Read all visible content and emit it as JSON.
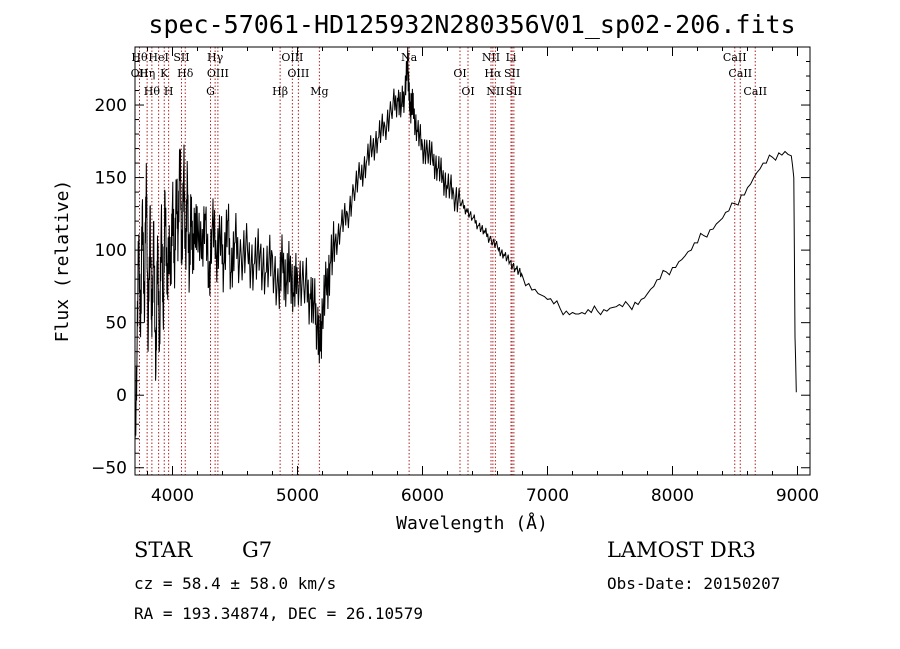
{
  "chart_data": {
    "type": "line",
    "title": "spec-57061-HD125932N280356V01_sp02-206.fits",
    "xlabel": "Wavelength (Å)",
    "ylabel": "Flux (relative)",
    "xlim": [
      3700,
      9100
    ],
    "ylim": [
      -55,
      240
    ],
    "x_ticks": [
      4000,
      5000,
      6000,
      7000,
      8000,
      9000
    ],
    "y_ticks": [
      -50,
      0,
      50,
      100,
      150,
      200
    ],
    "line_color": "#000000",
    "marker_color": "#b22222",
    "series": [
      {
        "name": "flux",
        "x": [
          3700,
          3715,
          3730,
          3745,
          3760,
          3775,
          3790,
          3805,
          3820,
          3835,
          3850,
          3865,
          3880,
          3895,
          3910,
          3925,
          3940,
          3955,
          3970,
          3985,
          4000,
          4015,
          4030,
          4045,
          4060,
          4075,
          4090,
          4105,
          4120,
          4135,
          4150,
          4165,
          4180,
          4200,
          4230,
          4260,
          4290,
          4320,
          4350,
          4380,
          4410,
          4440,
          4470,
          4500,
          4550,
          4600,
          4650,
          4700,
          4750,
          4800,
          4850,
          4880,
          4910,
          4940,
          4970,
          5000,
          5050,
          5100,
          5130,
          5160,
          5180,
          5200,
          5230,
          5260,
          5300,
          5350,
          5400,
          5450,
          5500,
          5550,
          5600,
          5650,
          5700,
          5750,
          5800,
          5830,
          5860,
          5880,
          5890,
          5900,
          5915,
          5930,
          5960,
          6000,
          6040,
          6080,
          6120,
          6160,
          6200,
          6250,
          6300,
          6350,
          6400,
          6450,
          6500,
          6550,
          6600,
          6650,
          6700,
          6750,
          6800,
          6850,
          6900,
          6950,
          7000,
          7050,
          7100,
          7150,
          7200,
          7250,
          7300,
          7350,
          7400,
          7450,
          7500,
          7550,
          7600,
          7650,
          7700,
          7750,
          7800,
          7850,
          7900,
          7950,
          8000,
          8050,
          8100,
          8150,
          8200,
          8250,
          8300,
          8350,
          8400,
          8450,
          8500,
          8550,
          8600,
          8650,
          8700,
          8750,
          8800,
          8850,
          8900,
          8950,
          8970,
          8980,
          8990
        ],
        "y": [
          -30,
          20,
          110,
          40,
          135,
          50,
          160,
          30,
          130,
          40,
          120,
          10,
          110,
          30,
          125,
          55,
          140,
          70,
          105,
          80,
          135,
          85,
          140,
          110,
          170,
          90,
          160,
          95,
          150,
          80,
          135,
          90,
          125,
          115,
          95,
          125,
          75,
          120,
          95,
          110,
          90,
          120,
          85,
          105,
          95,
          100,
          90,
          98,
          85,
          96,
          70,
          92,
          75,
          88,
          68,
          82,
          75,
          70,
          62,
          50,
          30,
          60,
          75,
          90,
          105,
          118,
          125,
          140,
          150,
          160,
          170,
          178,
          185,
          195,
          205,
          198,
          210,
          230,
          215,
          195,
          205,
          195,
          182,
          172,
          168,
          162,
          156,
          150,
          143,
          138,
          133,
          128,
          122,
          117,
          112,
          107,
          102,
          97,
          92,
          87,
          82,
          77,
          73,
          69,
          66,
          63,
          60,
          58,
          57,
          56,
          56,
          57,
          58,
          59,
          60,
          61,
          61,
          62,
          64,
          66,
          70,
          75,
          80,
          85,
          88,
          92,
          96,
          100,
          105,
          110,
          114,
          118,
          122,
          127,
          132,
          138,
          143,
          150,
          156,
          160,
          164,
          167,
          168,
          165,
          150,
          40,
          2
        ]
      }
    ],
    "lines": [
      {
        "wl": 3736,
        "labels": [
          "Hθ",
          "OII"
        ]
      },
      {
        "wl": 3797,
        "labels": [
          "Hη"
        ]
      },
      {
        "wl": 3835,
        "labels": [
          "Hθ"
        ]
      },
      {
        "wl": 3889,
        "labels": [
          "HeI"
        ]
      },
      {
        "wl": 3934,
        "labels": [
          "K"
        ]
      },
      {
        "wl": 3969,
        "labels": [
          "H"
        ]
      },
      {
        "wl": 4072,
        "labels": [
          "SII"
        ]
      },
      {
        "wl": 4102,
        "labels": [
          "Hδ"
        ]
      },
      {
        "wl": 4304,
        "labels": [
          "G"
        ]
      },
      {
        "wl": 4341,
        "labels": [
          "Hγ"
        ]
      },
      {
        "wl": 4363,
        "labels": [
          "OIII"
        ]
      },
      {
        "wl": 4861,
        "labels": [
          "Hβ"
        ]
      },
      {
        "wl": 4959,
        "labels": [
          "OIII"
        ]
      },
      {
        "wl": 5007,
        "labels": [
          "OIII"
        ]
      },
      {
        "wl": 5175,
        "labels": [
          "Mg"
        ]
      },
      {
        "wl": 5893,
        "labels": [
          "Na"
        ]
      },
      {
        "wl": 6300,
        "labels": [
          "OI"
        ]
      },
      {
        "wl": 6364,
        "labels": [
          "OI"
        ]
      },
      {
        "wl": 6548,
        "labels": [
          "NII"
        ]
      },
      {
        "wl": 6563,
        "labels": [
          "Hα"
        ]
      },
      {
        "wl": 6583,
        "labels": [
          "NII"
        ]
      },
      {
        "wl": 6708,
        "labels": [
          "Li"
        ]
      },
      {
        "wl": 6717,
        "labels": [
          "SII"
        ]
      },
      {
        "wl": 6731,
        "labels": [
          "SII"
        ]
      },
      {
        "wl": 8498,
        "labels": [
          "CaII"
        ]
      },
      {
        "wl": 8542,
        "labels": [
          "CaII"
        ]
      },
      {
        "wl": 8662,
        "labels": [
          "CaII"
        ]
      }
    ]
  },
  "info": {
    "object": "STAR",
    "subclass": "G7",
    "survey": "LAMOST DR3",
    "cz": "cz = 58.4 ± 58.0 km/s",
    "obs_date": "Obs-Date: 20150207",
    "coords": "RA = 193.34874, DEC =  26.10579"
  }
}
